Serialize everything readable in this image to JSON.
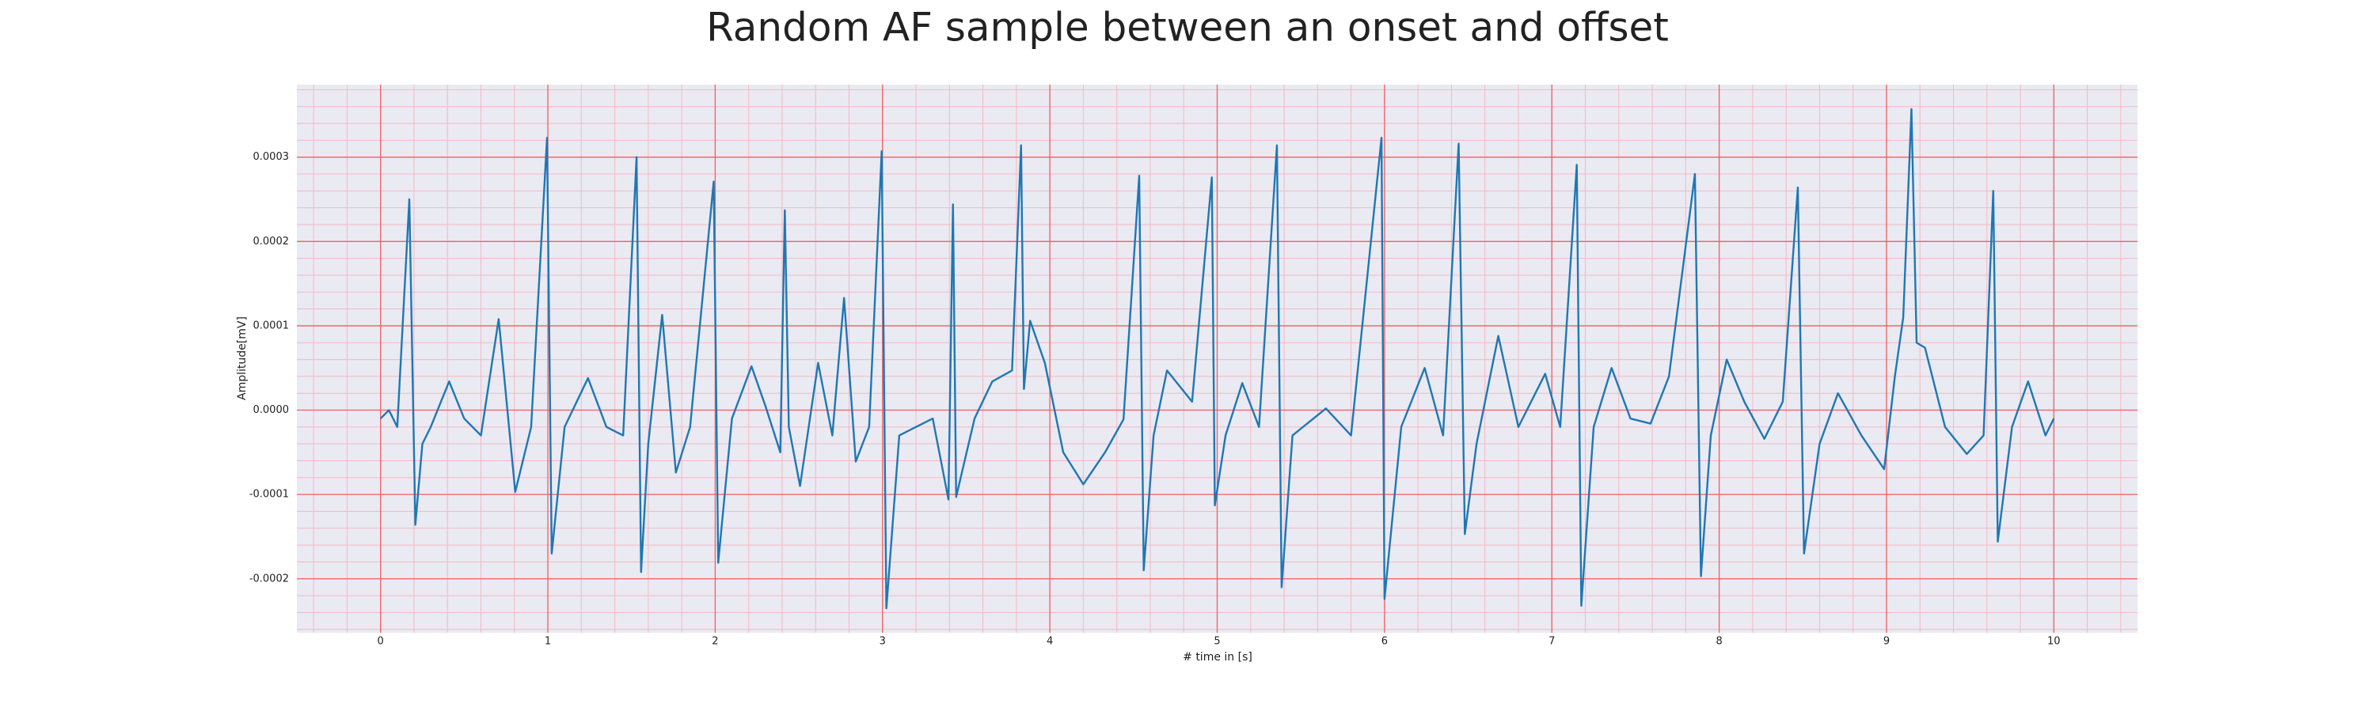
{
  "chart_data": {
    "type": "line",
    "title": "Random AF sample between an onset and offset",
    "x_label": "# time in [s]",
    "y_label": "Amplitude[mV]",
    "xlim": [
      -0.5,
      10.5
    ],
    "ylim": [
      -0.000264,
      0.000386
    ],
    "xticks": [
      0,
      1,
      2,
      3,
      4,
      5,
      6,
      7,
      8,
      9,
      10
    ],
    "yticks": [
      -0.0002,
      -0.0001,
      {
        "value": 0,
        "label": "0.0000"
      },
      0.0001,
      0.0002,
      0.0003
    ],
    "grid": true,
    "x": [
      0,
      0.05,
      0.1,
      0.172,
      0.208,
      0.25,
      0.3,
      0.41,
      0.5,
      0.6,
      0.706,
      0.805,
      0.9,
      0.995,
      1.023,
      1.1,
      1.24,
      1.35,
      1.45,
      1.53,
      1.557,
      1.6,
      1.683,
      1.765,
      1.85,
      1.991,
      2.018,
      2.1,
      2.217,
      2.3,
      2.389,
      2.416,
      2.44,
      2.507,
      2.615,
      2.7,
      2.77,
      2.84,
      2.92,
      2.995,
      3.023,
      3.1,
      3.2,
      3.3,
      3.394,
      3.421,
      3.44,
      3.55,
      3.656,
      3.774,
      3.828,
      3.845,
      3.882,
      3.97,
      4.08,
      4.2,
      4.33,
      4.44,
      4.534,
      4.561,
      4.62,
      4.7,
      4.85,
      4.968,
      4.986,
      5.05,
      5.15,
      5.25,
      5.357,
      5.385,
      5.45,
      5.65,
      5.8,
      5.982,
      6.0,
      6.1,
      6.24,
      6.35,
      6.443,
      6.48,
      6.55,
      6.68,
      6.8,
      6.96,
      7.05,
      7.149,
      7.176,
      7.25,
      7.357,
      7.47,
      7.59,
      7.7,
      7.855,
      7.891,
      7.95,
      8.045,
      8.15,
      8.27,
      8.38,
      8.47,
      8.507,
      8.6,
      8.71,
      8.85,
      8.986,
      9.05,
      9.1,
      9.149,
      9.18,
      9.23,
      9.35,
      9.48,
      9.58,
      9.638,
      9.665,
      9.75,
      9.846,
      9.95,
      10
    ],
    "series": [
      {
        "color": "#1f77b4",
        "values": [
          -1e-05,
          0.0,
          -2e-05,
          0.00025,
          -0.000136,
          -4e-05,
          -2e-05,
          3.4e-05,
          -1e-05,
          -3e-05,
          0.000108,
          -9.7e-05,
          -2e-05,
          0.000323,
          -0.00017,
          -2e-05,
          3.8e-05,
          -2e-05,
          -3e-05,
          0.0003,
          -0.000192,
          -4e-05,
          0.000113,
          -7.4e-05,
          -2e-05,
          0.000271,
          -0.000181,
          -1e-05,
          5.2e-05,
          5e-06,
          -5e-05,
          0.000237,
          -2e-05,
          -9e-05,
          5.6e-05,
          -3e-05,
          0.000133,
          -6.1e-05,
          -2e-05,
          0.000307,
          -0.000235,
          -3e-05,
          -2e-05,
          -1e-05,
          -0.000106,
          0.000244,
          -0.000103,
          -1e-05,
          3.4e-05,
          4.7e-05,
          0.000314,
          2.5e-05,
          0.000106,
          5.6e-05,
          -5e-05,
          -8.8e-05,
          -5e-05,
          -1.1e-05,
          0.000278,
          -0.00019,
          -3e-05,
          4.7e-05,
          1e-05,
          0.000276,
          -0.000113,
          -3e-05,
          3.2e-05,
          -2e-05,
          0.000314,
          -0.00021,
          -3e-05,
          2e-06,
          -3e-05,
          0.000323,
          -0.000224,
          -2e-05,
          5e-05,
          -3e-05,
          0.000316,
          -0.000147,
          -4e-05,
          8.8e-05,
          -2e-05,
          4.3e-05,
          -2e-05,
          0.000291,
          -0.000232,
          -2e-05,
          5e-05,
          -1e-05,
          -1.6e-05,
          4e-05,
          0.00028,
          -0.000197,
          -3e-05,
          6e-05,
          1e-05,
          -3.4e-05,
          1e-05,
          0.000264,
          -0.00017,
          -4e-05,
          2e-05,
          -3e-05,
          -7e-05,
          4e-05,
          0.00011,
          0.000357,
          8e-05,
          7.4e-05,
          -2e-05,
          -5.2e-05,
          -3e-05,
          0.00026,
          -0.000156,
          -2e-05,
          3.4e-05,
          -3e-05,
          -1e-05
        ]
      }
    ]
  }
}
